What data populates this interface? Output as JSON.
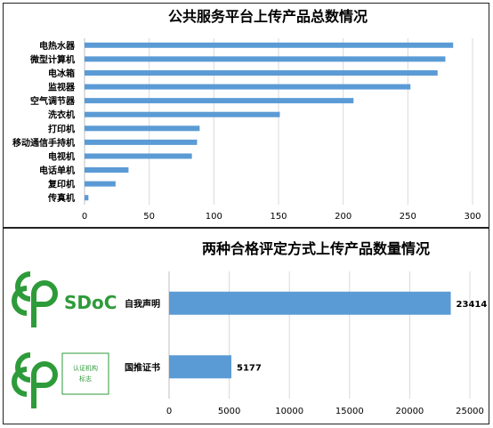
{
  "chart_data": [
    {
      "type": "bar",
      "orientation": "horizontal",
      "title": "公共服务平台上传产品总数情况",
      "categories": [
        "电热水器",
        "微型计算机",
        "电冰箱",
        "监视器",
        "空气调节器",
        "洗衣机",
        "打印机",
        "移动通信手持机",
        "电视机",
        "电话单机",
        "复印机",
        "传真机"
      ],
      "values": [
        285,
        279,
        273,
        252,
        208,
        151,
        89,
        87,
        83,
        34,
        24,
        3
      ],
      "xlim": [
        0,
        300
      ],
      "xticks": [
        "0",
        "50",
        "100",
        "150",
        "200",
        "250",
        "300"
      ],
      "grid": true,
      "bar_color": "#5b9bd5"
    },
    {
      "type": "bar",
      "orientation": "horizontal",
      "title": "两种合格评定方式上传产品数量情况",
      "categories": [
        "自我声明",
        "国推证书"
      ],
      "values": [
        23414,
        5177
      ],
      "data_labels": [
        "23414",
        "5177"
      ],
      "xlim": [
        0,
        25000
      ],
      "xticks": [
        "0",
        "5000",
        "10000",
        "15000",
        "20000",
        "25000"
      ],
      "grid": true,
      "bar_color": "#5b9bd5"
    }
  ],
  "logos": {
    "sdoc_text": "SDoC",
    "cert_text_line1": "认证机构",
    "cert_text_line2": "标志",
    "color": "#2e9b3a"
  }
}
